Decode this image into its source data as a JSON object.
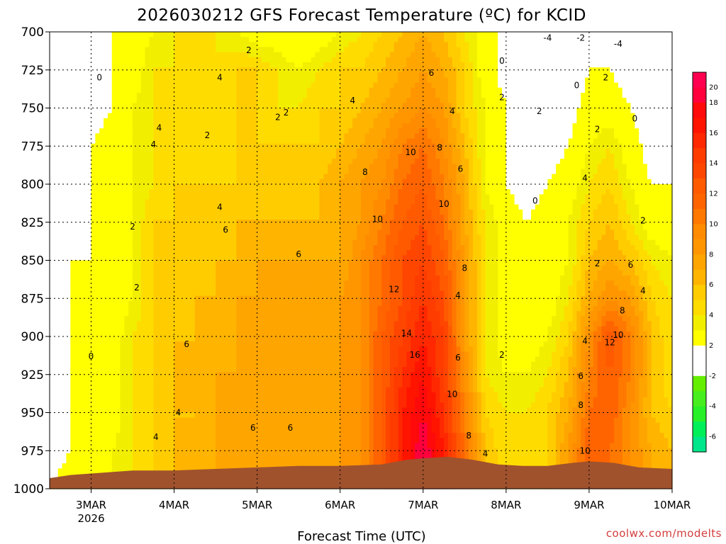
{
  "chart_data": {
    "type": "heatmap",
    "title": "2026030212 GFS Forecast Temperature (ºC) for KCID",
    "xlabel": "Forecast Time (UTC)",
    "ylabel": "",
    "credit": "coolwx.com/modelts",
    "y_axis": {
      "ticks": [
        700,
        725,
        750,
        775,
        800,
        825,
        850,
        875,
        900,
        925,
        950,
        975,
        1000
      ],
      "range": [
        700,
        1000
      ],
      "unit": "hPa"
    },
    "x_axis": {
      "ticks": [
        {
          "label": "3MAR",
          "sublabel": "2026",
          "day": 3
        },
        {
          "label": "4MAR",
          "sublabel": "",
          "day": 4
        },
        {
          "label": "5MAR",
          "sublabel": "",
          "day": 5
        },
        {
          "label": "6MAR",
          "sublabel": "",
          "day": 6
        },
        {
          "label": "7MAR",
          "sublabel": "",
          "day": 7
        },
        {
          "label": "8MAR",
          "sublabel": "",
          "day": 8
        },
        {
          "label": "9MAR",
          "sublabel": "",
          "day": 9
        },
        {
          "label": "10MAR",
          "sublabel": "",
          "day": 10
        }
      ],
      "range": [
        2.5,
        10
      ]
    },
    "colorbar": {
      "levels": [
        {
          "value": "",
          "color": "#00e68a"
        },
        {
          "value": "-6",
          "color": "#00f05a"
        },
        {
          "value": "",
          "color": "#28f028"
        },
        {
          "value": "-4",
          "color": "#46ee1e"
        },
        {
          "value": "",
          "color": "#64ee00"
        },
        {
          "value": "-2",
          "color": "#ffffff"
        },
        {
          "value": "",
          "color": "#ffffff"
        },
        {
          "value": "2",
          "color": "#ffff00"
        },
        {
          "value": "",
          "color": "#f2ee00"
        },
        {
          "value": "4",
          "color": "#ffdc00"
        },
        {
          "value": "",
          "color": "#ffcc00"
        },
        {
          "value": "6",
          "color": "#ffb400"
        },
        {
          "value": "",
          "color": "#ffa500"
        },
        {
          "value": "8",
          "color": "#ff9600"
        },
        {
          "value": "",
          "color": "#ff8c00"
        },
        {
          "value": "10",
          "color": "#ff7800"
        },
        {
          "value": "",
          "color": "#ff6400"
        },
        {
          "value": "12",
          "color": "#ff5a00"
        },
        {
          "value": "",
          "color": "#ff4600"
        },
        {
          "value": "14",
          "color": "#ff3c00"
        },
        {
          "value": "",
          "color": "#ff2800"
        },
        {
          "value": "16",
          "color": "#ff1400"
        },
        {
          "value": "",
          "color": "#ff0a0a"
        },
        {
          "value": "18",
          "color": "#ff003c"
        },
        {
          "value": "20",
          "color": "#ff0050"
        }
      ]
    },
    "contour_labels": [
      {
        "text": "0",
        "day": 3.1,
        "p": 730
      },
      {
        "text": "0",
        "day": 3.0,
        "p": 913
      },
      {
        "text": "2",
        "day": 3.5,
        "p": 828
      },
      {
        "text": "2",
        "day": 3.55,
        "p": 868
      },
      {
        "text": "4",
        "day": 3.82,
        "p": 763
      },
      {
        "text": "4",
        "day": 3.75,
        "p": 774
      },
      {
        "text": "2",
        "day": 4.4,
        "p": 768
      },
      {
        "text": "2",
        "day": 4.9,
        "p": 712
      },
      {
        "text": "4",
        "day": 4.55,
        "p": 730
      },
      {
        "text": "4",
        "day": 4.55,
        "p": 815
      },
      {
        "text": "6",
        "day": 4.62,
        "p": 830
      },
      {
        "text": "6",
        "day": 5.5,
        "p": 846
      },
      {
        "text": "6",
        "day": 4.15,
        "p": 905
      },
      {
        "text": "4",
        "day": 4.05,
        "p": 950
      },
      {
        "text": "4",
        "day": 3.78,
        "p": 966
      },
      {
        "text": "6",
        "day": 4.95,
        "p": 960
      },
      {
        "text": "6",
        "day": 5.4,
        "p": 960
      },
      {
        "text": "2",
        "day": 5.25,
        "p": 756
      },
      {
        "text": "2",
        "day": 5.35,
        "p": 753
      },
      {
        "text": "4",
        "day": 6.15,
        "p": 745
      },
      {
        "text": "8",
        "day": 6.3,
        "p": 792
      },
      {
        "text": "10",
        "day": 6.45,
        "p": 823
      },
      {
        "text": "12",
        "day": 6.65,
        "p": 869
      },
      {
        "text": "14",
        "day": 6.8,
        "p": 898
      },
      {
        "text": "16",
        "day": 6.9,
        "p": 912
      },
      {
        "text": "10",
        "day": 6.85,
        "p": 779
      },
      {
        "text": "8",
        "day": 7.2,
        "p": 776
      },
      {
        "text": "6",
        "day": 7.1,
        "p": 727
      },
      {
        "text": "10",
        "day": 7.25,
        "p": 813
      },
      {
        "text": "8",
        "day": 7.5,
        "p": 855
      },
      {
        "text": "4",
        "day": 7.35,
        "p": 752
      },
      {
        "text": "6",
        "day": 7.45,
        "p": 790
      },
      {
        "text": "4",
        "day": 7.42,
        "p": 873
      },
      {
        "text": "6",
        "day": 7.42,
        "p": 914
      },
      {
        "text": "10",
        "day": 7.35,
        "p": 938
      },
      {
        "text": "8",
        "day": 7.55,
        "p": 965
      },
      {
        "text": "4",
        "day": 7.75,
        "p": 977
      },
      {
        "text": "2",
        "day": 7.95,
        "p": 912
      },
      {
        "text": "2",
        "day": 7.95,
        "p": 743
      },
      {
        "text": "0",
        "day": 7.95,
        "p": 719
      },
      {
        "text": "-4",
        "day": 8.5,
        "p": 704
      },
      {
        "text": "-2",
        "day": 8.9,
        "p": 704
      },
      {
        "text": "-4",
        "day": 9.35,
        "p": 708
      },
      {
        "text": "2",
        "day": 8.4,
        "p": 752
      },
      {
        "text": "0",
        "day": 8.35,
        "p": 811
      },
      {
        "text": "0",
        "day": 8.85,
        "p": 735
      },
      {
        "text": "2",
        "day": 9.2,
        "p": 730
      },
      {
        "text": "2",
        "day": 9.1,
        "p": 764
      },
      {
        "text": "0",
        "day": 9.55,
        "p": 757
      },
      {
        "text": "4",
        "day": 8.95,
        "p": 796
      },
      {
        "text": "2",
        "day": 9.1,
        "p": 852
      },
      {
        "text": "2",
        "day": 9.65,
        "p": 824
      },
      {
        "text": "6",
        "day": 9.5,
        "p": 853
      },
      {
        "text": "4",
        "day": 9.65,
        "p": 870
      },
      {
        "text": "8",
        "day": 9.4,
        "p": 883
      },
      {
        "text": "4",
        "day": 8.95,
        "p": 903
      },
      {
        "text": "12",
        "day": 9.25,
        "p": 904
      },
      {
        "text": "10",
        "day": 9.35,
        "p": 899
      },
      {
        "text": "6",
        "day": 8.9,
        "p": 926
      },
      {
        "text": "8",
        "day": 8.9,
        "p": 945
      },
      {
        "text": "10",
        "day": 8.95,
        "p": 975
      }
    ],
    "temperature_grid": {
      "days": [
        2.5,
        2.75,
        3.0,
        3.25,
        3.5,
        3.75,
        4.0,
        4.25,
        4.5,
        4.75,
        5.0,
        5.25,
        5.5,
        5.75,
        6.0,
        6.25,
        6.5,
        6.75,
        7.0,
        7.25,
        7.5,
        7.75,
        8.0,
        8.25,
        8.5,
        8.75,
        9.0,
        9.25,
        9.5,
        9.75,
        10.0
      ],
      "pressures": [
        700,
        725,
        750,
        775,
        800,
        825,
        850,
        875,
        900,
        925,
        950,
        975,
        1000
      ],
      "values": [
        [
          -4,
          -2,
          -1,
          0,
          1,
          2,
          3,
          3,
          3,
          2,
          1,
          1,
          0,
          1,
          2,
          3,
          4,
          5,
          6,
          5,
          3,
          1,
          -1,
          -3,
          -4,
          -3,
          -2,
          -2,
          -3,
          -4,
          -4
        ],
        [
          -4,
          -2,
          -1,
          0,
          1,
          3,
          3,
          3,
          3,
          4,
          4,
          3,
          2,
          3,
          4,
          4,
          5,
          6,
          7,
          6,
          4,
          1,
          -1,
          -3,
          -3,
          -2,
          0,
          0,
          -1,
          -3,
          -3
        ],
        [
          -3,
          -2,
          -1,
          0,
          2,
          3,
          4,
          3,
          3,
          4,
          4,
          3,
          3,
          4,
          4,
          5,
          6,
          7,
          8,
          7,
          4,
          2,
          0,
          -2,
          -2,
          -1,
          1,
          1,
          0,
          -2,
          -2
        ],
        [
          -3,
          -2,
          0,
          1,
          2,
          3,
          4,
          3,
          3,
          4,
          4,
          4,
          4,
          4,
          5,
          6,
          7,
          9,
          10,
          8,
          5,
          2,
          0,
          -1,
          -1,
          0,
          2,
          3,
          1,
          -1,
          -1
        ],
        [
          -2,
          -1,
          0,
          1,
          2,
          3,
          4,
          4,
          4,
          4,
          4,
          4,
          4,
          5,
          6,
          7,
          8,
          10,
          11,
          9,
          6,
          2,
          0,
          -1,
          0,
          1,
          3,
          4,
          2,
          0,
          0
        ],
        [
          -2,
          -1,
          0,
          1,
          2,
          4,
          4,
          4,
          4,
          5,
          5,
          5,
          5,
          5,
          6,
          7,
          9,
          11,
          12,
          10,
          6,
          3,
          1,
          0,
          1,
          2,
          4,
          5,
          3,
          1,
          1
        ],
        [
          -2,
          0,
          0,
          1,
          2,
          4,
          4,
          4,
          5,
          5,
          6,
          6,
          6,
          6,
          6,
          8,
          10,
          12,
          13,
          11,
          7,
          3,
          1,
          0,
          1,
          2,
          5,
          6,
          5,
          3,
          2
        ],
        [
          -2,
          0,
          0,
          1,
          2,
          4,
          4,
          5,
          5,
          6,
          6,
          6,
          6,
          6,
          7,
          8,
          10,
          12,
          14,
          12,
          7,
          3,
          1,
          1,
          1,
          3,
          6,
          8,
          7,
          4,
          3
        ],
        [
          -2,
          0,
          0,
          1,
          3,
          4,
          5,
          5,
          5,
          6,
          6,
          6,
          6,
          6,
          7,
          8,
          11,
          13,
          15,
          13,
          7,
          3,
          1,
          1,
          2,
          4,
          8,
          12,
          9,
          5,
          3
        ],
        [
          -2,
          0,
          0,
          1,
          3,
          4,
          5,
          5,
          6,
          6,
          6,
          6,
          6,
          6,
          7,
          8,
          11,
          14,
          16,
          13,
          8,
          3,
          2,
          2,
          3,
          5,
          9,
          11,
          9,
          5,
          3
        ],
        [
          -2,
          0,
          1,
          1,
          3,
          4,
          5,
          5,
          6,
          6,
          6,
          6,
          6,
          6,
          7,
          8,
          11,
          15,
          17,
          14,
          9,
          4,
          3,
          3,
          4,
          6,
          10,
          11,
          8,
          5,
          4
        ],
        [
          -1,
          0,
          1,
          2,
          3,
          4,
          5,
          5,
          6,
          6,
          6,
          6,
          6,
          6,
          7,
          8,
          11,
          15,
          18,
          15,
          10,
          5,
          3,
          3,
          4,
          7,
          11,
          10,
          8,
          6,
          5
        ],
        [
          0,
          1,
          1,
          2,
          3,
          4,
          5,
          5,
          6,
          6,
          6,
          6,
          6,
          6,
          7,
          8,
          11,
          15,
          18,
          15,
          10,
          5,
          3,
          3,
          4,
          7,
          11,
          10,
          8,
          6,
          5
        ]
      ]
    },
    "terrain_surface": [
      {
        "day": 2.5,
        "p": 993
      },
      {
        "day": 2.75,
        "p": 991
      },
      {
        "day": 3.0,
        "p": 990
      },
      {
        "day": 3.5,
        "p": 988
      },
      {
        "day": 4.0,
        "p": 988
      },
      {
        "day": 4.5,
        "p": 987
      },
      {
        "day": 5.0,
        "p": 986
      },
      {
        "day": 5.5,
        "p": 985
      },
      {
        "day": 6.0,
        "p": 985
      },
      {
        "day": 6.5,
        "p": 984
      },
      {
        "day": 6.8,
        "p": 981
      },
      {
        "day": 7.0,
        "p": 980
      },
      {
        "day": 7.3,
        "p": 979
      },
      {
        "day": 7.6,
        "p": 981
      },
      {
        "day": 7.9,
        "p": 984
      },
      {
        "day": 8.2,
        "p": 985
      },
      {
        "day": 8.5,
        "p": 985
      },
      {
        "day": 8.8,
        "p": 983
      },
      {
        "day": 9.0,
        "p": 982
      },
      {
        "day": 9.3,
        "p": 983
      },
      {
        "day": 9.6,
        "p": 986
      },
      {
        "day": 10.0,
        "p": 987
      }
    ]
  }
}
